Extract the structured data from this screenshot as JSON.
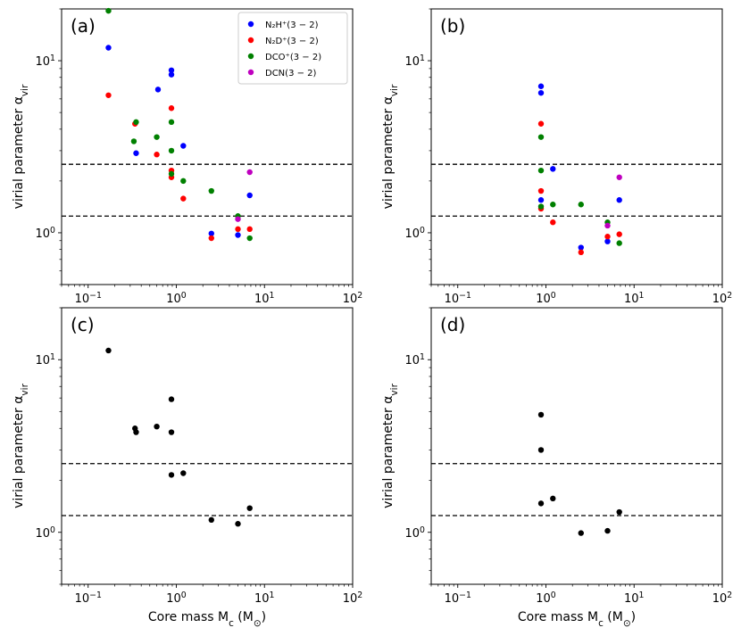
{
  "chart_data": [
    {
      "type": "scatter",
      "panel_label": "(a)",
      "xscale": "log",
      "yscale": "log",
      "xlim": [
        0.05,
        100
      ],
      "ylim": [
        0.5,
        20
      ],
      "xlabel": "",
      "ylabel": "virial parameter α_vir",
      "x_ticks": [
        {
          "value": 0.1,
          "base": "10",
          "exp": "−1"
        },
        {
          "value": 1,
          "base": "10",
          "exp": "0"
        },
        {
          "value": 10,
          "base": "10",
          "exp": "1"
        },
        {
          "value": 100,
          "base": "10",
          "exp": "2"
        }
      ],
      "y_ticks": [
        {
          "value": 1,
          "base": "10",
          "exp": "0"
        },
        {
          "value": 10,
          "base": "10",
          "exp": "1"
        }
      ],
      "hlines": [
        1.25,
        2.5
      ],
      "legend": {
        "position": "top-right"
      },
      "series": [
        {
          "name": "N₂H⁺(3 − 2)",
          "color": "#0000ff",
          "x": [
            0.17,
            0.35,
            0.62,
            0.88,
            0.88,
            1.2,
            2.5,
            5.0,
            6.8
          ],
          "y": [
            11.9,
            2.9,
            6.8,
            8.3,
            8.8,
            3.2,
            0.99,
            0.97,
            1.65
          ]
        },
        {
          "name": "N₂D⁺(3 − 2)",
          "color": "#ff0000",
          "x": [
            0.17,
            0.34,
            0.6,
            0.88,
            0.88,
            0.88,
            1.2,
            2.5,
            5.0,
            6.8
          ],
          "y": [
            6.3,
            4.3,
            2.85,
            5.3,
            2.3,
            2.1,
            1.58,
            0.93,
            1.05,
            1.05
          ]
        },
        {
          "name": "DCO⁺(3 − 2)",
          "color": "#008000",
          "x": [
            0.17,
            0.33,
            0.35,
            0.6,
            0.88,
            0.88,
            0.88,
            1.2,
            2.5,
            5.0,
            6.8
          ],
          "y": [
            19.5,
            3.4,
            4.4,
            3.6,
            4.4,
            3.0,
            2.2,
            2.0,
            1.75,
            1.25,
            0.93
          ]
        },
        {
          "name": "DCN(3 − 2)",
          "color": "#bf00bf",
          "x": [
            5.0,
            6.8
          ],
          "y": [
            1.2,
            2.25
          ]
        }
      ]
    },
    {
      "type": "scatter",
      "panel_label": "(b)",
      "xscale": "log",
      "yscale": "log",
      "xlim": [
        0.05,
        100
      ],
      "ylim": [
        0.5,
        20
      ],
      "xlabel": "",
      "ylabel": "virial parameter α_vir",
      "x_ticks": [
        {
          "value": 0.1,
          "base": "10",
          "exp": "−1"
        },
        {
          "value": 1,
          "base": "10",
          "exp": "0"
        },
        {
          "value": 10,
          "base": "10",
          "exp": "1"
        },
        {
          "value": 100,
          "base": "10",
          "exp": "2"
        }
      ],
      "y_ticks": [
        {
          "value": 1,
          "base": "10",
          "exp": "0"
        },
        {
          "value": 10,
          "base": "10",
          "exp": "1"
        }
      ],
      "hlines": [
        1.25,
        2.5
      ],
      "series": [
        {
          "name": "N₂H⁺(3 − 2)",
          "color": "#0000ff",
          "x": [
            0.88,
            0.88,
            0.88,
            1.2,
            2.5,
            5.0,
            6.8
          ],
          "y": [
            7.1,
            6.5,
            1.55,
            2.35,
            0.82,
            0.89,
            1.55
          ]
        },
        {
          "name": "N₂D⁺(3 − 2)",
          "color": "#ff0000",
          "x": [
            0.88,
            0.88,
            0.88,
            1.2,
            2.5,
            5.0,
            6.8
          ],
          "y": [
            4.3,
            1.75,
            1.38,
            1.15,
            0.77,
            0.95,
            0.98
          ]
        },
        {
          "name": "DCO⁺(3 − 2)",
          "color": "#008000",
          "x": [
            0.88,
            0.88,
            0.88,
            1.2,
            2.5,
            5.0,
            6.8
          ],
          "y": [
            3.6,
            2.3,
            1.42,
            1.46,
            1.46,
            1.15,
            0.87
          ]
        },
        {
          "name": "DCN(3 − 2)",
          "color": "#bf00bf",
          "x": [
            5.0,
            6.8
          ],
          "y": [
            1.1,
            2.1
          ]
        }
      ]
    },
    {
      "type": "scatter",
      "panel_label": "(c)",
      "xscale": "log",
      "yscale": "log",
      "xlim": [
        0.05,
        100
      ],
      "ylim": [
        0.5,
        20
      ],
      "xlabel": "Core mass M_c (M_⊙)",
      "ylabel": "virial parameter α_vir",
      "x_ticks": [
        {
          "value": 0.1,
          "base": "10",
          "exp": "−1"
        },
        {
          "value": 1,
          "base": "10",
          "exp": "0"
        },
        {
          "value": 10,
          "base": "10",
          "exp": "1"
        },
        {
          "value": 100,
          "base": "10",
          "exp": "2"
        }
      ],
      "y_ticks": [
        {
          "value": 1,
          "base": "10",
          "exp": "0"
        },
        {
          "value": 10,
          "base": "10",
          "exp": "1"
        }
      ],
      "hlines": [
        1.25,
        2.5
      ],
      "series": [
        {
          "name": "",
          "color": "#000000",
          "x": [
            0.17,
            0.34,
            0.35,
            0.6,
            0.88,
            0.88,
            0.88,
            1.2,
            2.5,
            5.0,
            6.8
          ],
          "y": [
            11.3,
            4.0,
            3.8,
            4.1,
            5.9,
            3.8,
            2.15,
            2.2,
            1.18,
            1.12,
            1.38
          ]
        }
      ]
    },
    {
      "type": "scatter",
      "panel_label": "(d)",
      "xscale": "log",
      "yscale": "log",
      "xlim": [
        0.05,
        100
      ],
      "ylim": [
        0.5,
        20
      ],
      "xlabel": "Core mass M_c (M_⊙)",
      "ylabel": "virial parameter α_vir",
      "x_ticks": [
        {
          "value": 0.1,
          "base": "10",
          "exp": "−1"
        },
        {
          "value": 1,
          "base": "10",
          "exp": "0"
        },
        {
          "value": 10,
          "base": "10",
          "exp": "1"
        },
        {
          "value": 100,
          "base": "10",
          "exp": "2"
        }
      ],
      "y_ticks": [
        {
          "value": 1,
          "base": "10",
          "exp": "0"
        },
        {
          "value": 10,
          "base": "10",
          "exp": "1"
        }
      ],
      "hlines": [
        1.25,
        2.5
      ],
      "series": [
        {
          "name": "",
          "color": "#000000",
          "x": [
            0.88,
            0.88,
            0.88,
            1.2,
            2.5,
            5.0,
            6.8
          ],
          "y": [
            4.8,
            3.0,
            1.47,
            1.57,
            0.99,
            1.02,
            1.31
          ]
        }
      ]
    }
  ]
}
